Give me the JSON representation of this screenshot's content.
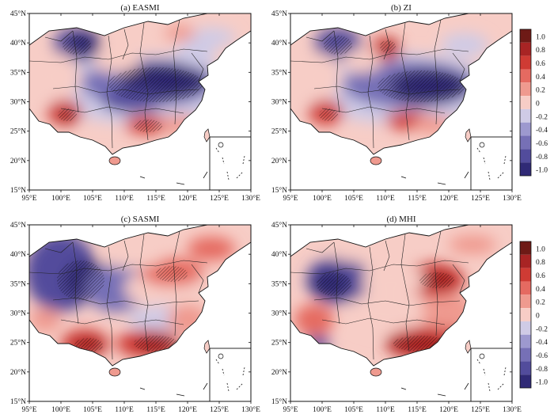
{
  "figure": {
    "panels": [
      {
        "id": "a",
        "title": "(a) EASMI"
      },
      {
        "id": "b",
        "title": "(b) ZI"
      },
      {
        "id": "c",
        "title": "(c) SASMI"
      },
      {
        "id": "d",
        "title": "(d) MHI"
      }
    ],
    "lon_ticks": [
      "95°E",
      "100°E",
      "105°E",
      "110°E",
      "115°E",
      "120°E",
      "125°E",
      "130°E"
    ],
    "lat_ticks": [
      "45°N",
      "40°N",
      "35°N",
      "30°N",
      "25°N",
      "20°N",
      "15°N"
    ],
    "colorbar": {
      "labels": [
        "1.0",
        "0.8",
        "0.6",
        "0.4",
        "0.2",
        "0",
        "-0.2",
        "-0.4",
        "-0.6",
        "-0.8",
        "-1.0"
      ],
      "colors": [
        "#6e1a16",
        "#a82424",
        "#cf3b34",
        "#e56a61",
        "#ef9a8f",
        "#f7cdc6",
        "#cfcbe6",
        "#9d99cf",
        "#7670b6",
        "#524c9c",
        "#302a76"
      ]
    },
    "map": {
      "lon_range": [
        95,
        130
      ],
      "lat_range": [
        15,
        45
      ],
      "land_color": "#ffffff",
      "boundary_color": "#111111"
    }
  }
}
